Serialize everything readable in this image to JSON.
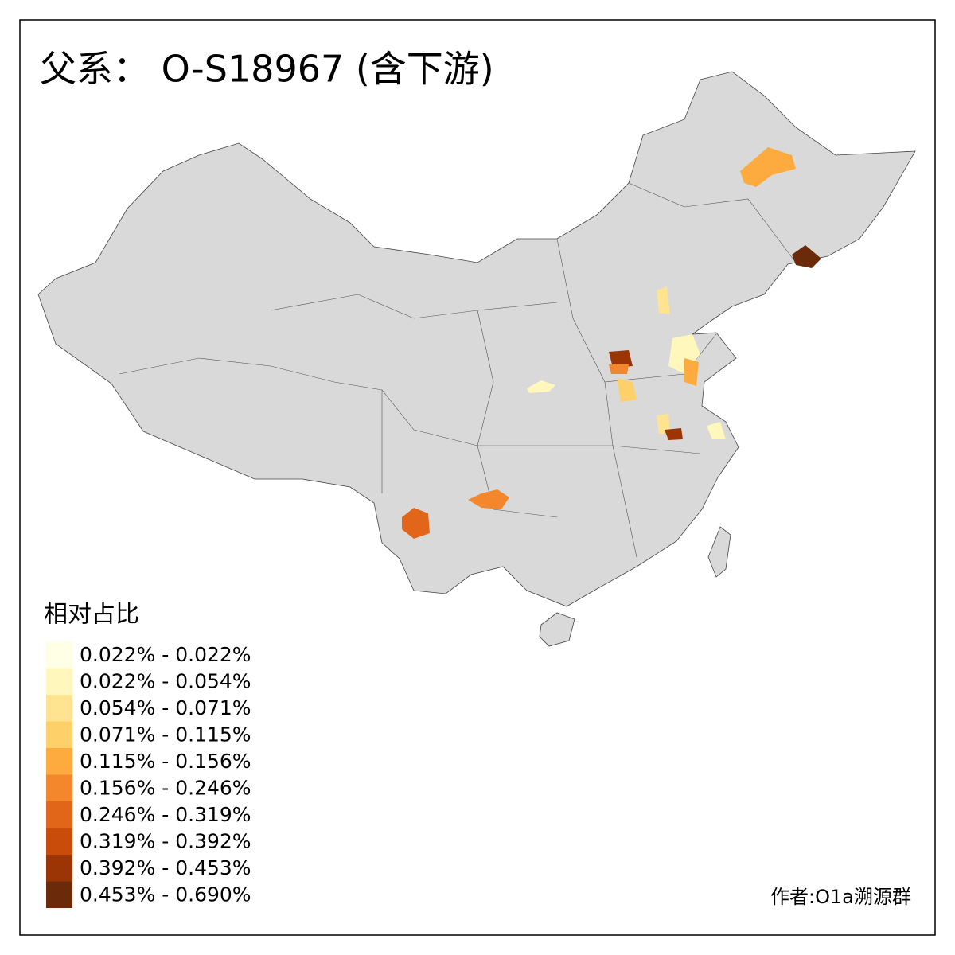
{
  "title": "父系： O-S18967 (含下游)",
  "legend": {
    "title": "相对占比",
    "items": [
      {
        "label": "0.022% - 0.022%",
        "color": "#ffffe5"
      },
      {
        "label": "0.022% - 0.054%",
        "color": "#fff7bc"
      },
      {
        "label": "0.054% - 0.071%",
        "color": "#fee391"
      },
      {
        "label": "0.071% - 0.115%",
        "color": "#fed06a"
      },
      {
        "label": "0.115% - 0.156%",
        "color": "#fdab3f"
      },
      {
        "label": "0.156% - 0.246%",
        "color": "#f4862c"
      },
      {
        "label": "0.246% - 0.319%",
        "color": "#e2661a"
      },
      {
        "label": "0.319% - 0.392%",
        "color": "#c94c0a"
      },
      {
        "label": "0.392% - 0.453%",
        "color": "#9c3506"
      },
      {
        "label": "0.453% - 0.690%",
        "color": "#6b2a0a"
      }
    ]
  },
  "credit": "作者:O1a溯源群"
}
